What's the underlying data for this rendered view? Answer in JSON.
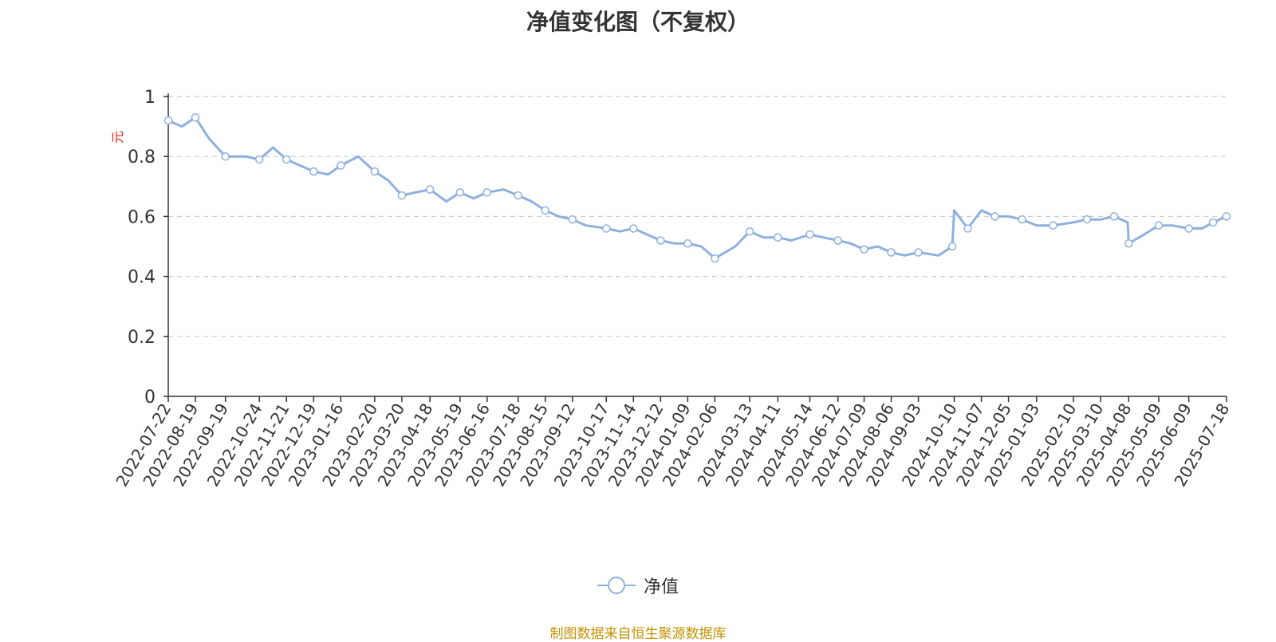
{
  "chart_data": {
    "type": "line",
    "title": "净值变化图（不复权）",
    "ylabel": "元",
    "xlabel": "",
    "ylim": [
      0,
      1
    ],
    "yticks": [
      "0",
      "0.2",
      "0.4",
      "0.6",
      "0.8",
      "1"
    ],
    "x_tick_labels": [
      "2022-07-22",
      "2022-08-19",
      "2022-09-19",
      "2022-10-24",
      "2022-11-21",
      "2022-12-19",
      "2023-01-16",
      "2023-02-20",
      "2023-03-20",
      "2023-04-18",
      "2023-05-19",
      "2023-06-16",
      "2023-07-18",
      "2023-08-15",
      "2023-09-12",
      "2023-10-17",
      "2023-11-14",
      "2023-12-12",
      "2024-01-09",
      "2024-02-06",
      "2024-03-13",
      "2024-04-11",
      "2024-05-14",
      "2024-06-12",
      "2024-07-09",
      "2024-08-06",
      "2024-09-03",
      "2024-10-10",
      "2024-11-07",
      "2024-12-05",
      "2025-01-03",
      "2025-02-10",
      "2025-03-10",
      "2025-04-08",
      "2025-05-09",
      "2025-06-09",
      "2025-07-18"
    ],
    "grid": "horizontal-dashed",
    "legend_position": "bottom-center",
    "colors": {
      "line": "#8fb0dd",
      "marker_fill": "#ffffff",
      "axis": "#333333",
      "grid": "#cccccc",
      "ylabel": "#e02020",
      "source": "#c39100"
    },
    "series": [
      {
        "name": "净值",
        "x": [
          "2022-07-22",
          "2022-08-05",
          "2022-08-19",
          "2022-09-02",
          "2022-09-19",
          "2022-10-10",
          "2022-10-24",
          "2022-11-07",
          "2022-11-21",
          "2022-12-05",
          "2022-12-19",
          "2023-01-03",
          "2023-01-16",
          "2023-02-03",
          "2023-02-20",
          "2023-03-06",
          "2023-03-20",
          "2023-04-03",
          "2023-04-18",
          "2023-05-05",
          "2023-05-19",
          "2023-06-02",
          "2023-06-16",
          "2023-07-03",
          "2023-07-18",
          "2023-08-01",
          "2023-08-15",
          "2023-08-29",
          "2023-09-12",
          "2023-09-26",
          "2023-10-17",
          "2023-10-31",
          "2023-11-14",
          "2023-11-28",
          "2023-12-12",
          "2023-12-26",
          "2024-01-09",
          "2024-01-23",
          "2024-02-06",
          "2024-02-27",
          "2024-03-13",
          "2024-03-27",
          "2024-04-11",
          "2024-04-25",
          "2024-05-14",
          "2024-05-28",
          "2024-06-12",
          "2024-06-25",
          "2024-07-09",
          "2024-07-23",
          "2024-08-06",
          "2024-08-20",
          "2024-09-03",
          "2024-09-24",
          "2024-10-08",
          "2024-10-10",
          "2024-10-24",
          "2024-11-07",
          "2024-11-21",
          "2024-12-05",
          "2024-12-19",
          "2025-01-03",
          "2025-01-20",
          "2025-02-10",
          "2025-02-24",
          "2025-03-10",
          "2025-03-24",
          "2025-04-07",
          "2025-04-08",
          "2025-04-24",
          "2025-05-09",
          "2025-05-23",
          "2025-06-09",
          "2025-06-23",
          "2025-07-04",
          "2025-07-18"
        ],
        "values": [
          0.92,
          0.9,
          0.93,
          0.86,
          0.8,
          0.8,
          0.79,
          0.83,
          0.79,
          0.77,
          0.75,
          0.74,
          0.77,
          0.8,
          0.75,
          0.72,
          0.67,
          0.68,
          0.69,
          0.65,
          0.68,
          0.66,
          0.68,
          0.69,
          0.67,
          0.65,
          0.62,
          0.6,
          0.59,
          0.57,
          0.56,
          0.55,
          0.56,
          0.54,
          0.52,
          0.51,
          0.51,
          0.5,
          0.46,
          0.5,
          0.55,
          0.53,
          0.53,
          0.52,
          0.54,
          0.53,
          0.52,
          0.51,
          0.49,
          0.5,
          0.48,
          0.47,
          0.48,
          0.47,
          0.5,
          0.62,
          0.56,
          0.62,
          0.6,
          0.6,
          0.59,
          0.57,
          0.57,
          0.58,
          0.59,
          0.59,
          0.6,
          0.58,
          0.51,
          0.54,
          0.57,
          0.57,
          0.56,
          0.56,
          0.58,
          0.6
        ]
      }
    ]
  },
  "source_text": "制图数据来自恒生聚源数据库"
}
